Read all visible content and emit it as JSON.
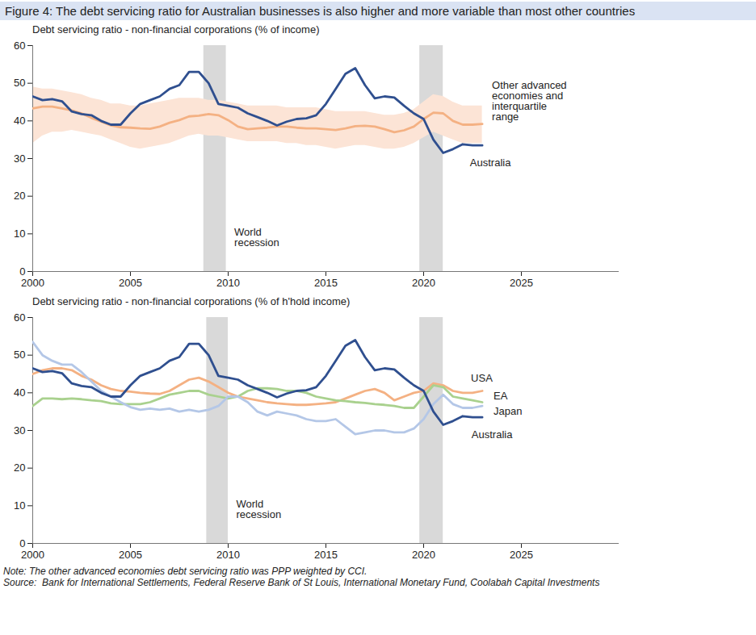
{
  "title": "Figure 4: The debt servicing ratio for Australian businesses is also higher and more variable than most other countries",
  "note": "Note: The other advanced economies debt servicing ratio was PPP weighted by CCI.",
  "source": "Source:  Bank for International Settlements, Federal Reserve Bank of St Louis, International Monetary Fund, Coolabah Capital Investments",
  "chart_data": [
    {
      "type": "line",
      "title": "Debt servicing ratio - non-financial corporations (% of income)",
      "x": [
        2000,
        2000.5,
        2001,
        2001.5,
        2002,
        2002.5,
        2003,
        2003.5,
        2004,
        2004.5,
        2005,
        2005.5,
        2006,
        2006.5,
        2007,
        2007.5,
        2008,
        2008.5,
        2009,
        2009.5,
        2010,
        2010.5,
        2011,
        2011.5,
        2012,
        2012.5,
        2013,
        2013.5,
        2014,
        2014.5,
        2015,
        2015.5,
        2016,
        2016.5,
        2017,
        2017.5,
        2018,
        2018.5,
        2019,
        2019.5,
        2020,
        2020.5,
        2021,
        2021.5,
        2022,
        2022.5,
        2023
      ],
      "xlim": [
        2000,
        2030
      ],
      "xticks": [
        2000,
        2005,
        2010,
        2015,
        2020,
        2025
      ],
      "ylim": [
        0,
        60
      ],
      "yticks": [
        0,
        10,
        20,
        30,
        40,
        50,
        60
      ],
      "shaded_periods": [
        {
          "label": "World recession",
          "start": 2008.75,
          "end": 2009.9
        },
        {
          "start": 2019.8,
          "end": 2021
        }
      ],
      "series": [
        {
          "name": "Other advanced economies and interquartile range",
          "color": "#f4b183",
          "values": [
            43.3,
            43.8,
            43.8,
            43.3,
            42.8,
            42,
            40.8,
            39.8,
            38.8,
            38.3,
            38.2,
            38,
            37.9,
            38.5,
            39.5,
            40.2,
            41.2,
            41.4,
            41.8,
            41.5,
            40.2,
            38.5,
            37.8,
            38,
            38.2,
            38.5,
            38.5,
            38.2,
            38,
            38,
            37.8,
            37.6,
            38,
            38.6,
            38.7,
            38.5,
            37.8,
            37,
            37.5,
            38.5,
            40.5,
            42.2,
            42,
            40,
            39,
            39,
            39.2
          ],
          "range": {
            "color": "#fce4d6",
            "low": [
              34,
              36,
              37,
              37,
              37.5,
              37,
              36.5,
              36,
              35,
              34,
              33,
              32.5,
              33,
              33.5,
              34,
              35,
              36,
              36.5,
              36,
              36,
              35.5,
              35,
              34.5,
              34.5,
              34.5,
              34.5,
              34,
              34,
              33.5,
              33.5,
              33,
              32.5,
              33,
              33.5,
              33.5,
              33,
              32.5,
              32.5,
              33,
              34,
              35.5,
              37,
              36,
              35,
              34,
              34,
              34
            ],
            "high": [
              49,
              48.5,
              48.5,
              48,
              47.5,
              47,
              46,
              45.5,
              44.5,
              44.5,
              44,
              44,
              44.5,
              45,
              45.5,
              46,
              46,
              46,
              45.5,
              45.5,
              45,
              44.5,
              44,
              44,
              44,
              44,
              43.5,
              43.5,
              43.5,
              43.5,
              43,
              42.5,
              42.5,
              42.5,
              42.5,
              42,
              41.5,
              41.5,
              42,
              43,
              45,
              47,
              46.5,
              45,
              44,
              44,
              44
            ]
          }
        },
        {
          "name": "Australia",
          "color": "#2f4f8f",
          "values": [
            46.5,
            45.5,
            45.8,
            45.2,
            42.5,
            41.8,
            41.5,
            40,
            39,
            39,
            42,
            44.5,
            45.5,
            46.5,
            48.5,
            49.5,
            53,
            53,
            50,
            44.5,
            44,
            43.5,
            42,
            41,
            40,
            38.8,
            39.8,
            40.5,
            40.7,
            41.5,
            44.5,
            48.5,
            52.5,
            54,
            49.5,
            46,
            46.5,
            46.2,
            44,
            42,
            40.5,
            35,
            31.5,
            32.5,
            33.8,
            33.5,
            33.5
          ]
        }
      ]
    },
    {
      "type": "line",
      "title": "Debt servicing ratio - non-financial corporations (% of h'hold income)",
      "x": [
        2000,
        2000.5,
        2001,
        2001.5,
        2002,
        2002.5,
        2003,
        2003.5,
        2004,
        2004.5,
        2005,
        2005.5,
        2006,
        2006.5,
        2007,
        2007.5,
        2008,
        2008.5,
        2009,
        2009.5,
        2010,
        2010.5,
        2011,
        2011.5,
        2012,
        2012.5,
        2013,
        2013.5,
        2014,
        2014.5,
        2015,
        2015.5,
        2016,
        2016.5,
        2017,
        2017.5,
        2018,
        2018.5,
        2019,
        2019.5,
        2020,
        2020.5,
        2021,
        2021.5,
        2022,
        2022.5,
        2023
      ],
      "xlim": [
        2000,
        2030
      ],
      "xticks": [
        2000,
        2005,
        2010,
        2015,
        2020,
        2025
      ],
      "ylim": [
        0,
        60
      ],
      "yticks": [
        0,
        10,
        20,
        30,
        40,
        50,
        60
      ],
      "shaded_periods": [
        {
          "label": "World recession",
          "start": 2008.9,
          "end": 2010
        },
        {
          "start": 2019.8,
          "end": 2021
        }
      ],
      "series": [
        {
          "name": "USA",
          "color": "#f4b183",
          "values": [
            45,
            46,
            46.5,
            46.5,
            46,
            44.5,
            43.5,
            42,
            41,
            40.5,
            40.3,
            40,
            39.8,
            39.7,
            40.5,
            42,
            43.5,
            44,
            43,
            41.5,
            40,
            39,
            38.5,
            38,
            37.5,
            37.2,
            37,
            36.8,
            36.8,
            37,
            37.2,
            37.5,
            38.5,
            39.5,
            40.5,
            41,
            40,
            38,
            39,
            40,
            40.5,
            42.5,
            42,
            40.5,
            40,
            40,
            40.5
          ]
        },
        {
          "name": "EA",
          "color": "#a9d18e",
          "values": [
            36.5,
            38.5,
            38.5,
            38.3,
            38.5,
            38.3,
            38,
            37.8,
            37.2,
            37,
            37,
            37,
            37.5,
            38.5,
            39.5,
            40,
            40.5,
            40.5,
            39.5,
            39,
            38.5,
            39,
            40.5,
            41.2,
            41.2,
            41,
            40.5,
            40.5,
            40,
            39,
            38.5,
            38,
            37.8,
            37.5,
            37.3,
            37,
            36.8,
            36.5,
            36,
            36,
            39,
            42,
            41.5,
            39,
            38.5,
            38,
            37.5
          ]
        },
        {
          "name": "Japan",
          "color": "#b4c7e7",
          "values": [
            53.5,
            50,
            48.5,
            47.5,
            47.5,
            45.5,
            43,
            40.5,
            39,
            37.5,
            36.2,
            35.5,
            35.8,
            35.5,
            35.8,
            35,
            35.5,
            35,
            35.5,
            36.5,
            39,
            39,
            37.5,
            35,
            34,
            35,
            34.5,
            34,
            33,
            32.5,
            32.5,
            33,
            31,
            29,
            29.5,
            30,
            30,
            29.5,
            29.5,
            30.5,
            33,
            37,
            39.5,
            37,
            36,
            36,
            36.5
          ]
        },
        {
          "name": "Australia",
          "color": "#2f4f8f",
          "values": [
            46.5,
            45.5,
            45.8,
            45.2,
            42.5,
            41.8,
            41.5,
            40,
            39,
            39,
            42,
            44.5,
            45.5,
            46.5,
            48.5,
            49.5,
            53,
            53,
            50,
            44.5,
            44,
            43.5,
            42,
            41,
            40,
            38.8,
            39.8,
            40.5,
            40.7,
            41.5,
            44.5,
            48.5,
            52.5,
            54,
            49.5,
            46,
            46.5,
            46.2,
            44,
            42,
            40.5,
            35,
            31.5,
            32.5,
            33.8,
            33.5,
            33.5
          ]
        }
      ]
    }
  ]
}
